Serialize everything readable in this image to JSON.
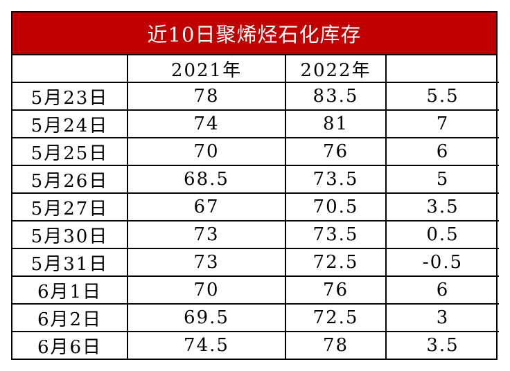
{
  "title": "近10日聚烯烃石化库存",
  "header": [
    "",
    "2021年",
    "2022年",
    ""
  ],
  "rows": [
    [
      "5月23日",
      "78",
      "83.5",
      "5.5"
    ],
    [
      "5月24日",
      "74",
      "81",
      "7"
    ],
    [
      "5月25日",
      "70",
      "76",
      "6"
    ],
    [
      "5月26日",
      "68.5",
      "73.5",
      "5"
    ],
    [
      "5月27日",
      "67",
      "70.5",
      "3.5"
    ],
    [
      "5月30日",
      "73",
      "73.5",
      "0.5"
    ],
    [
      "5月31日",
      "73",
      "72.5",
      "-0.5"
    ],
    [
      "6月1日",
      "70",
      "76",
      "6"
    ],
    [
      "6月2日",
      "69.5",
      "72.5",
      "3"
    ],
    [
      "6月6日",
      "74.5",
      "78",
      "3.5"
    ]
  ],
  "colors": {
    "title_background": "#c00000",
    "title_text": "#ffffff",
    "border": "#000000"
  }
}
